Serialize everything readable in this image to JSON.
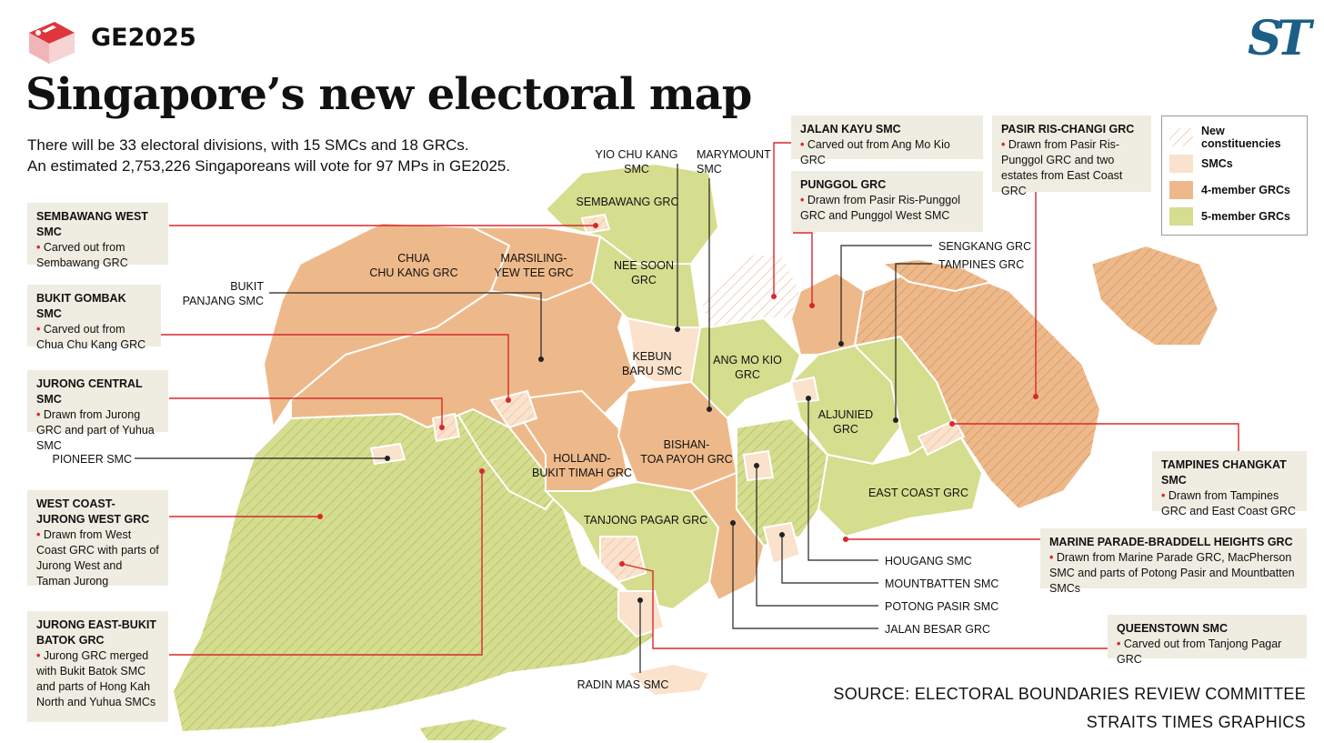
{
  "tag": "GE2025",
  "logo_text": "ST",
  "title": "Singapore’s new electoral map",
  "subtitle_lines": [
    "There will be 33 electoral divisions, with 15 SMCs and 18 GRCs.",
    "An estimated 2,753,226 Singaporeans will vote for 97 MPs in GE2025."
  ],
  "colors": {
    "smc": "#fbe2cd",
    "grc4": "#eeb98a",
    "grc5": "#d5dd8e",
    "accent": "#d7282f",
    "logo": "#1b5e86"
  },
  "legend": {
    "items": [
      {
        "label": "New constituencies",
        "swatch": "hatch"
      },
      {
        "label": "SMCs",
        "swatch": "smc"
      },
      {
        "label": "4-member GRCs",
        "swatch": "grc4"
      },
      {
        "label": "5-member GRCs",
        "swatch": "grc5"
      }
    ]
  },
  "callouts": {
    "sembawang_west": {
      "title": "Sembawang West SMC",
      "desc": "Carved out from Sembawang GRC"
    },
    "bukit_gombak": {
      "title": "Bukit Gombak SMC",
      "desc": "Carved out from Chua Chu Kang GRC"
    },
    "jurong_central": {
      "title": "Jurong Central SMC",
      "desc": "Drawn from Jurong GRC and part of Yuhua SMC"
    },
    "west_coast": {
      "title": "West Coast-Jurong West GRC",
      "desc": "Drawn from West Coast GRC with parts of Jurong West and Taman Jurong"
    },
    "jurong_east": {
      "title": "Jurong East-Bukit Batok GRC",
      "desc": "Jurong GRC merged with Bukit Batok SMC and parts of Hong Kah North and Yuhua SMCs"
    },
    "jalan_kayu": {
      "title": "Jalan Kayu SMC",
      "desc": "Carved out from Ang Mo Kio GRC"
    },
    "punggol": {
      "title": "Punggol GRC",
      "desc": "Drawn from Pasir Ris-Punggol GRC and Punggol West SMC"
    },
    "pasir_ris": {
      "title": "Pasir Ris-Changi GRC",
      "desc": "Drawn from Pasir Ris-Punggol GRC and two estates from East Coast GRC"
    },
    "tampines_changkat": {
      "title": "Tampines Changkat SMC",
      "desc": "Drawn from Tampines GRC and East Coast GRC"
    },
    "marine_parade": {
      "title": "Marine Parade-Braddell Heights GRC",
      "desc": "Drawn from Marine Parade GRC, MacPherson SMC and parts of Potong Pasir and Mountbatten SMCs"
    },
    "queenstown": {
      "title": "Queenstown SMC",
      "desc": "Carved out from Tanjong Pagar GRC"
    }
  },
  "map_labels": {
    "yio_chu_kang": "YIO CHU KANG SMC",
    "marymount": "MARYMOUNT\nSMC",
    "sembawang": "SEMBAWANG GRC",
    "nee_soon": "NEE SOON\nGRC",
    "chua_chu_kang": "CHUA\nCHU KANG GRC",
    "marsiling": "MARSILING-\nYEW TEE GRC",
    "bukit_panjang": "BUKIT\nPANJANG SMC",
    "kebun_baru": "KEBUN\nBARU SMC",
    "ang_mo_kio": "ANG MO KIO\nGRC",
    "sengkang": "SENGKANG GRC",
    "tampines": "TAMPINES GRC",
    "aljunied": "ALJUNIED\nGRC",
    "bishan": "BISHAN-\nTOA PAYOH GRC",
    "holland": "HOLLAND-\nBUKIT TIMAH GRC",
    "pioneer": "PIONEER SMC",
    "east_coast": "EAST COAST GRC",
    "tanjong_pagar": "TANJONG PAGAR GRC",
    "hougang": "HOUGANG SMC",
    "mountbatten": "MOUNTBATTEN SMC",
    "potong_pasir": "POTONG PASIR SMC",
    "jalan_besar": "JALAN BESAR GRC",
    "radin_mas": "RADIN MAS SMC"
  },
  "source_lines": [
    "SOURCE: ELECTORAL BOUNDARIES REVIEW COMMITTEE",
    "STRAITS TIMES GRAPHICS"
  ]
}
